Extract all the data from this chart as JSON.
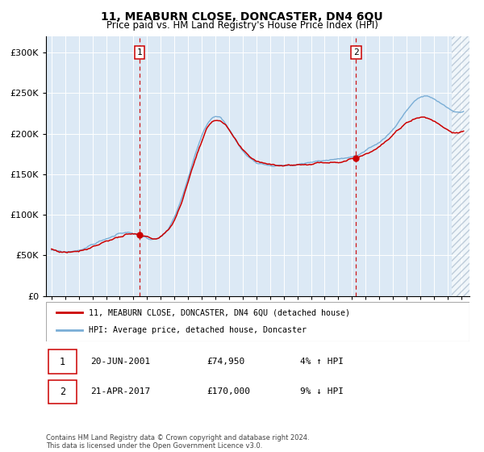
{
  "title": "11, MEABURN CLOSE, DONCASTER, DN4 6QU",
  "subtitle": "Price paid vs. HM Land Registry's House Price Index (HPI)",
  "legend_line1": "11, MEABURN CLOSE, DONCASTER, DN4 6QU (detached house)",
  "legend_line2": "HPI: Average price, detached house, Doncaster",
  "sale1_date": "20-JUN-2001",
  "sale1_price": 74950,
  "sale1_pct": "4% ↑ HPI",
  "sale2_date": "21-APR-2017",
  "sale2_price": 170000,
  "sale2_pct": "9% ↓ HPI",
  "footnote": "Contains HM Land Registry data © Crown copyright and database right 2024.\nThis data is licensed under the Open Government Licence v3.0.",
  "red_line_color": "#cc0000",
  "blue_line_color": "#7aaed6",
  "bg_fill_color": "#dce9f5",
  "vline_color": "#cc0000",
  "ylim": [
    0,
    320000
  ],
  "yticks": [
    0,
    50000,
    100000,
    150000,
    200000,
    250000,
    300000
  ],
  "start_year": 1995,
  "end_year": 2025,
  "sale1_year": 2001.46,
  "sale2_year": 2017.3
}
